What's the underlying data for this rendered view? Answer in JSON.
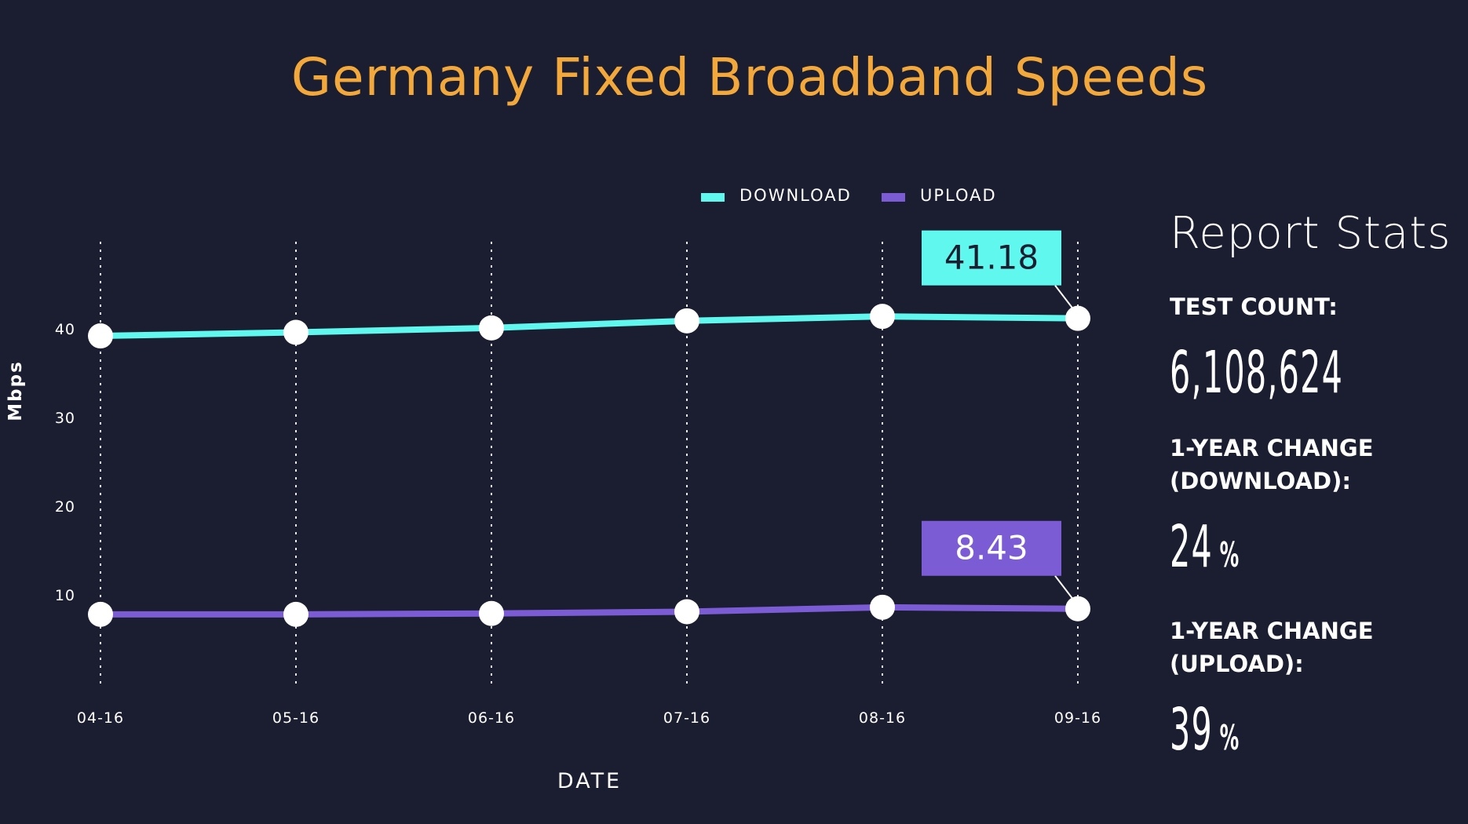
{
  "title": "Germany Fixed Broadband Speeds",
  "colors": {
    "background": "#1b1d30",
    "title": "#f3a83c",
    "download": "#5ff7ee",
    "upload": "#7c5cd4",
    "point": "#ffffff"
  },
  "chart_data": {
    "type": "line",
    "categories": [
      "04-16",
      "05-16",
      "06-16",
      "07-16",
      "08-16",
      "09-16"
    ],
    "series": [
      {
        "name": "DOWNLOAD",
        "values": [
          39.2,
          39.6,
          40.1,
          40.9,
          41.4,
          41.18
        ]
      },
      {
        "name": "UPLOAD",
        "values": [
          7.8,
          7.8,
          7.9,
          8.1,
          8.6,
          8.43
        ]
      }
    ],
    "callouts": [
      {
        "series": "DOWNLOAD",
        "label": "41.18"
      },
      {
        "series": "UPLOAD",
        "label": "8.43"
      }
    ],
    "xlabel": "DATE",
    "ylabel": "Mbps",
    "yticks": [
      "10",
      "20",
      "30",
      "40"
    ],
    "ylim": [
      0,
      48
    ],
    "grid": "vertical dotted",
    "legend_position": "top"
  },
  "stats": {
    "heading": "Report Stats",
    "test_count_label": "TEST COUNT:",
    "test_count_value": "6,108,624",
    "download_change_label": "1-YEAR CHANGE\n(DOWNLOAD):",
    "download_change_value": "24",
    "upload_change_label": "1-YEAR CHANGE\n(UPLOAD):",
    "upload_change_value": "39",
    "percent_unit": "%"
  }
}
